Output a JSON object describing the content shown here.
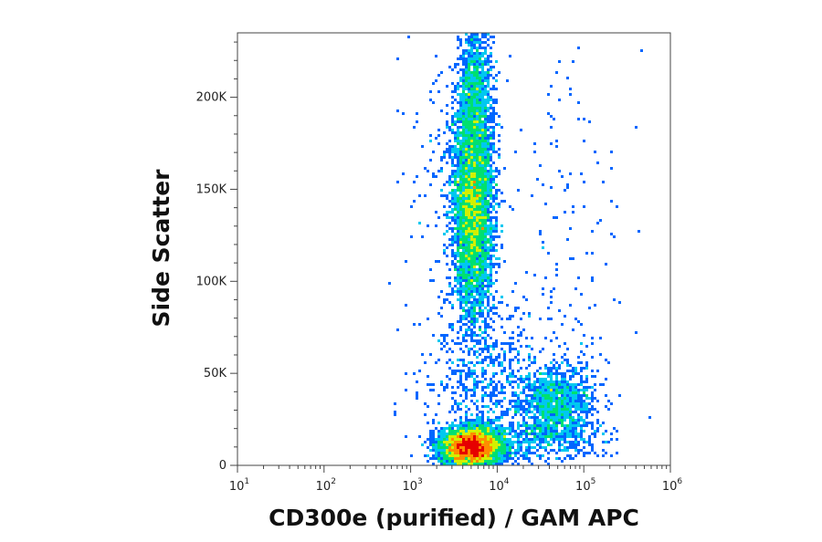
{
  "chart_data": {
    "type": "scatter",
    "title": "",
    "xlabel": "CD300e (purified) / GAM APC",
    "ylabel": "Side Scatter",
    "x_scale": "log",
    "xlim": [
      10,
      1000000
    ],
    "ylim": [
      0,
      235000
    ],
    "x_ticks": [
      {
        "base": "10",
        "exp": "1",
        "value": 10
      },
      {
        "base": "10",
        "exp": "2",
        "value": 100
      },
      {
        "base": "10",
        "exp": "3",
        "value": 1000
      },
      {
        "base": "10",
        "exp": "4",
        "value": 10000
      },
      {
        "base": "10",
        "exp": "5",
        "value": 100000
      },
      {
        "base": "10",
        "exp": "6",
        "value": 1000000
      }
    ],
    "y_ticks": [
      {
        "label": "0",
        "value": 0
      },
      {
        "label": "50K",
        "value": 50000
      },
      {
        "label": "100K",
        "value": 100000
      },
      {
        "label": "150K",
        "value": 150000
      },
      {
        "label": "200K",
        "value": 200000
      }
    ],
    "density_colors": [
      "#0000e6",
      "#0066ff",
      "#00c8f0",
      "#00e070",
      "#d2f000",
      "#ff8c00",
      "#e60000"
    ],
    "populations": [
      {
        "x_center": 5000,
        "x_log_spread": 0.17,
        "y_center": 10000,
        "y_spread": 5000,
        "events": 4200
      },
      {
        "x_center": 5200,
        "x_log_spread": 0.12,
        "y_center": 140000,
        "y_spread": 30000,
        "events": 4300
      },
      {
        "x_center": 5500,
        "x_log_spread": 0.1,
        "y_center": 205000,
        "y_spread": 18000,
        "events": 800
      },
      {
        "x_center": 50000,
        "x_log_spread": 0.22,
        "y_center": 33000,
        "y_spread": 11000,
        "events": 1100
      },
      {
        "x_center": 9000,
        "x_log_spread": 0.4,
        "y_center": 40000,
        "y_spread": 22000,
        "events": 700
      },
      {
        "x_center": 20000,
        "x_log_spread": 0.45,
        "y_center": 14000,
        "y_spread": 6000,
        "events": 450
      },
      {
        "x_center": 70000,
        "x_log_spread": 0.35,
        "y_center": 130000,
        "y_spread": 45000,
        "events": 130
      },
      {
        "x_center": 3000,
        "x_log_spread": 0.3,
        "y_center": 150000,
        "y_spread": 40000,
        "events": 180
      }
    ],
    "grid": false,
    "legend": "none"
  }
}
